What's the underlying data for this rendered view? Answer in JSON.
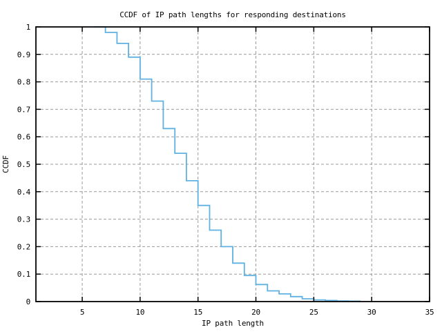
{
  "chart_data": {
    "type": "line",
    "subtype": "step-function",
    "title": "CCDF of IP path lengths for responding destinations",
    "xlabel": "IP path length",
    "ylabel": "CCDF",
    "xlim": [
      1,
      35
    ],
    "ylim": [
      0,
      1
    ],
    "xticks": [
      5,
      10,
      15,
      20,
      25,
      30,
      35
    ],
    "xtick_labels": [
      "5",
      "10",
      "15",
      "20",
      "25",
      "30",
      "35"
    ],
    "yticks": [
      0,
      0.1,
      0.2,
      0.3,
      0.4,
      0.5,
      0.6,
      0.7,
      0.8,
      0.9,
      1
    ],
    "ytick_labels": [
      "0",
      "0.1",
      "0.2",
      "0.3",
      "0.4",
      "0.5",
      "0.6",
      "0.7",
      "0.8",
      "0.9",
      "1"
    ],
    "grid": true,
    "grid_style": "dashed",
    "legend": "none",
    "series": [
      {
        "name": "CCDF of IP path length",
        "step": true,
        "color": "#5fb1e1",
        "points": [
          [
            6,
            1.0
          ],
          [
            7,
            0.98
          ],
          [
            8,
            0.94
          ],
          [
            9,
            0.89
          ],
          [
            10,
            0.81
          ],
          [
            11,
            0.73
          ],
          [
            12,
            0.63
          ],
          [
            13,
            0.54
          ],
          [
            14,
            0.44
          ],
          [
            15,
            0.35
          ],
          [
            16,
            0.26
          ],
          [
            17,
            0.2
          ],
          [
            18,
            0.14
          ],
          [
            19,
            0.095
          ],
          [
            20,
            0.062
          ],
          [
            21,
            0.039
          ],
          [
            22,
            0.028
          ],
          [
            23,
            0.018
          ],
          [
            24,
            0.01
          ],
          [
            25,
            0.006
          ],
          [
            26,
            0.004
          ],
          [
            27,
            0.002
          ],
          [
            28,
            0.0015
          ],
          [
            29,
            0.001
          ]
        ]
      }
    ],
    "colors": {
      "line": "#5fb1e1",
      "grid": "#999999",
      "axis": "#000000",
      "text": "#000000",
      "background": "#ffffff"
    }
  }
}
